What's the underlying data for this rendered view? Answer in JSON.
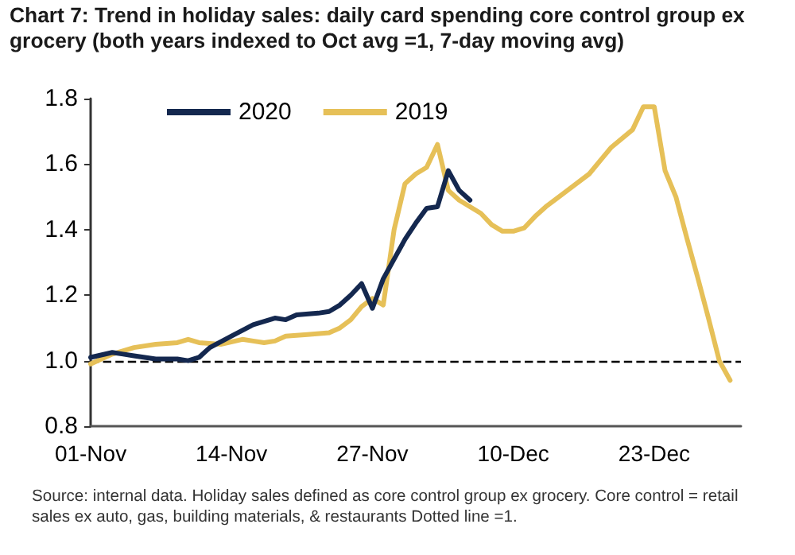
{
  "chart_data": {
    "type": "line",
    "title": "Chart 7: Trend in holiday sales: daily card spending core control group ex grocery (both years indexed to Oct avg =1, 7-day moving avg)",
    "annotations": [
      "Source: internal data. Holiday sales defined as core control group ex grocery. Core control = retail sales ex auto, gas, building materials, & restaurants Dotted line =1."
    ],
    "series": [
      {
        "name": "2020",
        "color": "#14284f",
        "x": [
          "--11-01",
          "--11-03",
          "--11-04",
          "--11-05",
          "--11-07",
          "--11-09",
          "--11-10",
          "--11-11",
          "--11-12",
          "--11-14",
          "--11-16",
          "--11-18",
          "--11-19",
          "--11-20",
          "--11-22",
          "--11-23",
          "--11-24",
          "--11-25",
          "--11-26",
          "--11-27",
          "--11-28",
          "--11-29",
          "--11-30",
          "--12-01",
          "--12-02",
          "--12-03",
          "--12-04",
          "--12-05",
          "--12-06"
        ],
        "values": [
          1.01,
          1.025,
          1.02,
          1.015,
          1.005,
          1.005,
          1.0,
          1.01,
          1.04,
          1.075,
          1.11,
          1.13,
          1.125,
          1.14,
          1.145,
          1.15,
          1.17,
          1.2,
          1.235,
          1.16,
          1.25,
          1.31,
          1.37,
          1.42,
          1.465,
          1.47,
          1.58,
          1.52,
          1.49
        ]
      },
      {
        "name": "2019",
        "color": "#e6c058",
        "x": [
          "--11-01",
          "--11-03",
          "--11-05",
          "--11-07",
          "--11-09",
          "--11-10",
          "--11-11",
          "--11-13",
          "--11-15",
          "--11-16",
          "--11-17",
          "--11-18",
          "--11-19",
          "--11-21",
          "--11-23",
          "--11-24",
          "--11-25",
          "--11-26",
          "--11-27",
          "--11-28",
          "--11-29",
          "--11-30",
          "--12-01",
          "--12-02",
          "--12-03",
          "--12-04",
          "--12-05",
          "--12-06",
          "--12-07",
          "--12-08",
          "--12-09",
          "--12-10",
          "--12-11",
          "--12-12",
          "--12-13",
          "--12-15",
          "--12-17",
          "--12-19",
          "--12-21",
          "--12-22",
          "--12-23",
          "--12-24",
          "--12-25",
          "--12-26",
          "--12-27",
          "--12-28",
          "--12-29",
          "--12-30"
        ],
        "values": [
          0.99,
          1.02,
          1.04,
          1.05,
          1.055,
          1.065,
          1.055,
          1.05,
          1.065,
          1.06,
          1.055,
          1.06,
          1.075,
          1.08,
          1.085,
          1.1,
          1.125,
          1.165,
          1.19,
          1.17,
          1.4,
          1.54,
          1.57,
          1.59,
          1.66,
          1.52,
          1.49,
          1.47,
          1.45,
          1.415,
          1.395,
          1.395,
          1.405,
          1.44,
          1.47,
          1.52,
          1.57,
          1.65,
          1.705,
          1.775,
          1.775,
          1.58,
          1.5,
          1.375,
          1.255,
          1.13,
          1.0,
          0.94
        ]
      }
    ],
    "xlim": [
      "--11-01",
      "--12-31"
    ],
    "xticks": [
      {
        "value": "--11-01",
        "label": "01-Nov"
      },
      {
        "value": "--11-14",
        "label": "14-Nov"
      },
      {
        "value": "--11-27",
        "label": "27-Nov"
      },
      {
        "value": "--12-10",
        "label": "10-Dec"
      },
      {
        "value": "--12-23",
        "label": "23-Dec"
      }
    ],
    "ylim": [
      0.8,
      1.8
    ],
    "yticks": [
      0.8,
      {
        "value": 1,
        "label": "1.0"
      },
      1.2,
      1.4,
      1.6,
      1.8
    ],
    "ref_lines": [
      {
        "axis": "y",
        "value": 1,
        "color": "#000000",
        "line_style": "dashed"
      }
    ],
    "legend": "top",
    "grid": false,
    "marker": "none",
    "line_style": "solid"
  }
}
